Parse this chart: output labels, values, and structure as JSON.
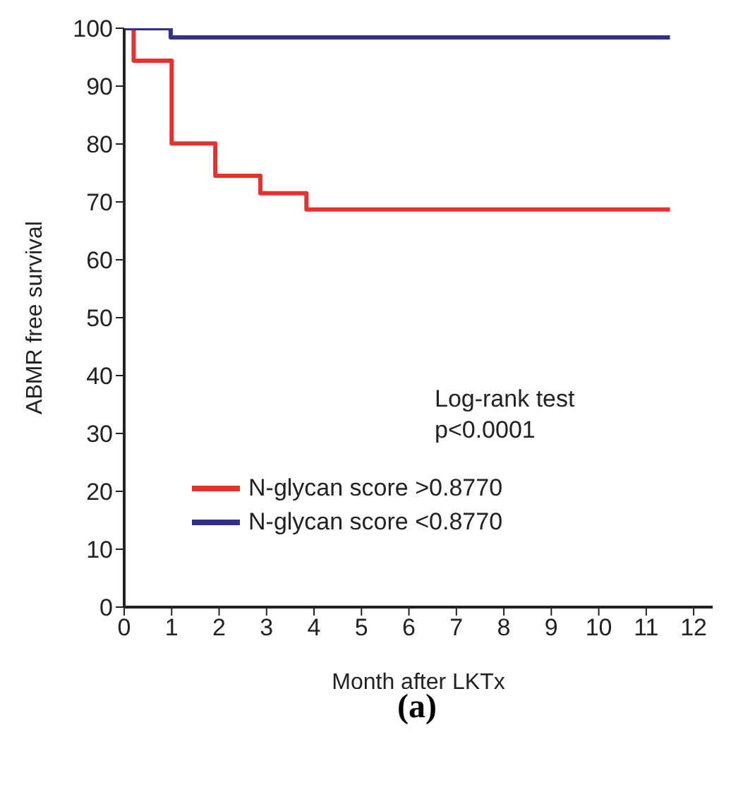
{
  "chart_data": {
    "type": "step",
    "title": "(a)",
    "xlabel": "Month after LKTx",
    "ylabel": "ABMR free survival",
    "annotations": [
      "Log-rank test",
      "p<0.0001"
    ],
    "series": [
      {
        "name": "N-glycan score >0.8770",
        "color": "#e8312f",
        "x": [
          0,
          0.2,
          1,
          1.92,
          2.87,
          3.84,
          11.5
        ],
        "values": [
          100,
          94.4,
          80.1,
          74.5,
          71.5,
          68.7,
          68.7
        ]
      },
      {
        "name": "N-glycan score <0.8770",
        "color": "#33308a",
        "x": [
          0,
          0.98,
          11.5
        ],
        "values": [
          100,
          98.4,
          98.4
        ]
      }
    ],
    "xlim": [
      0,
      12.4
    ],
    "xticks": [
      0,
      1,
      2,
      3,
      4,
      5,
      6,
      7,
      8,
      9,
      10,
      11,
      12
    ],
    "ylim": [
      0,
      100
    ],
    "yticks": [
      0,
      10,
      20,
      30,
      40,
      50,
      60,
      70,
      80,
      90,
      100
    ],
    "grid": false,
    "legend": "left",
    "line_style": "solid",
    "marker": "none"
  }
}
